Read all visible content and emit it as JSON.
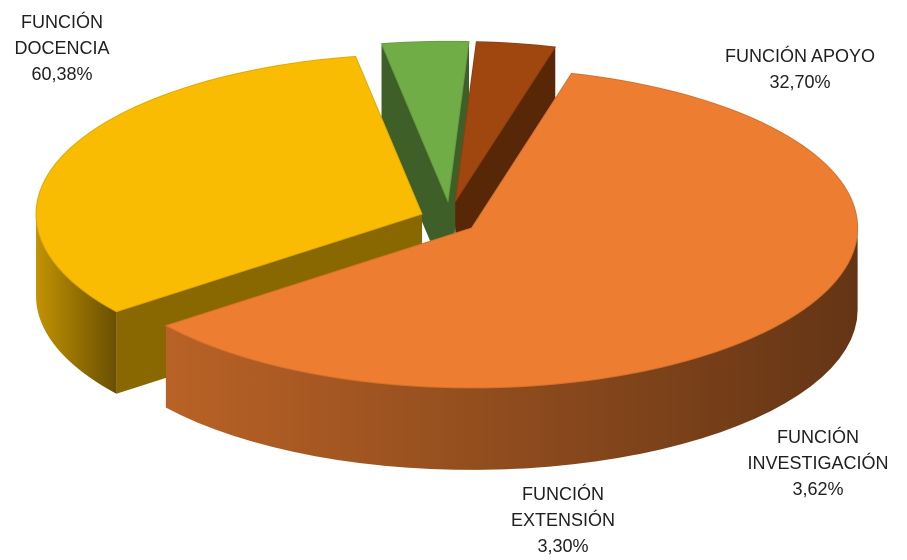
{
  "chart_data": {
    "type": "pie",
    "title": "",
    "three_d": true,
    "exploded": true,
    "slices": [
      {
        "label": "FUNCIÓN DOCENCIA",
        "label_lines": [
          "FUNCIÓN",
          "DOCENCIA"
        ],
        "value": 60.38,
        "value_label": "60,38%",
        "color": "#ED7D31"
      },
      {
        "label": "FUNCIÓN APOYO",
        "label_lines": [
          "FUNCIÓN APOYO"
        ],
        "value": 32.7,
        "value_label": "32,70%",
        "color": "#F9BC02"
      },
      {
        "label": "FUNCIÓN INVESTIGACIÓN",
        "label_lines": [
          "FUNCIÓN",
          "INVESTIGACIÓN"
        ],
        "value": 3.62,
        "value_label": "3,62%",
        "color": "#70AD47"
      },
      {
        "label": "FUNCIÓN EXTENSIÓN",
        "label_lines": [
          "FUNCIÓN",
          "EXTENSIÓN"
        ],
        "value": 3.3,
        "value_label": "3,30%",
        "color": "#A0460F"
      }
    ]
  }
}
